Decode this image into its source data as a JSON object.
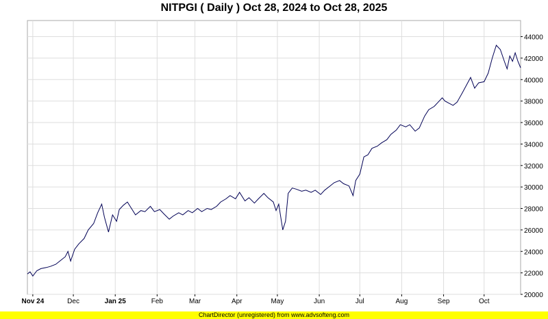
{
  "chart_data": {
    "type": "line",
    "title": "NITPGI ( Daily ) Oct 28, 2024 to Oct 28, 2025",
    "xlabel": "",
    "ylabel": "",
    "ylim": [
      20000,
      45500
    ],
    "yticks": [
      20000,
      22000,
      24000,
      26000,
      28000,
      30000,
      32000,
      34000,
      36000,
      38000,
      40000,
      42000,
      44000
    ],
    "xticks": [
      {
        "label": "Nov 24",
        "date": "2024-11-01",
        "bold": true
      },
      {
        "label": "Dec",
        "date": "2024-12-01",
        "bold": false
      },
      {
        "label": "Jan 25",
        "date": "2025-01-01",
        "bold": true
      },
      {
        "label": "Feb",
        "date": "2025-02-01",
        "bold": false
      },
      {
        "label": "Mar",
        "date": "2025-03-01",
        "bold": false
      },
      {
        "label": "Apr",
        "date": "2025-04-01",
        "bold": false
      },
      {
        "label": "May",
        "date": "2025-05-01",
        "bold": false
      },
      {
        "label": "Jun",
        "date": "2025-06-01",
        "bold": false
      },
      {
        "label": "Jul",
        "date": "2025-07-01",
        "bold": false
      },
      {
        "label": "Aug",
        "date": "2025-08-01",
        "bold": false
      },
      {
        "label": "Sep",
        "date": "2025-09-01",
        "bold": false
      },
      {
        "label": "Oct",
        "date": "2025-10-01",
        "bold": false
      }
    ],
    "grid": true,
    "line_color": "#000055",
    "series": [
      {
        "points": [
          [
            "2024-10-28",
            21900
          ],
          [
            "2024-10-30",
            22100
          ],
          [
            "2024-11-01",
            21700
          ],
          [
            "2024-11-04",
            22200
          ],
          [
            "2024-11-07",
            22400
          ],
          [
            "2024-11-11",
            22500
          ],
          [
            "2024-11-14",
            22600
          ],
          [
            "2024-11-18",
            22800
          ],
          [
            "2024-11-21",
            23100
          ],
          [
            "2024-11-25",
            23500
          ],
          [
            "2024-11-27",
            24000
          ],
          [
            "2024-11-29",
            23100
          ],
          [
            "2024-12-02",
            24200
          ],
          [
            "2024-12-05",
            24700
          ],
          [
            "2024-12-09",
            25200
          ],
          [
            "2024-12-12",
            26000
          ],
          [
            "2024-12-16",
            26600
          ],
          [
            "2024-12-19",
            27600
          ],
          [
            "2024-12-22",
            28400
          ],
          [
            "2024-12-24",
            27200
          ],
          [
            "2024-12-27",
            25800
          ],
          [
            "2024-12-30",
            27400
          ],
          [
            "2025-01-02",
            26800
          ],
          [
            "2025-01-04",
            27900
          ],
          [
            "2025-01-07",
            28300
          ],
          [
            "2025-01-10",
            28600
          ],
          [
            "2025-01-13",
            28000
          ],
          [
            "2025-01-16",
            27400
          ],
          [
            "2025-01-20",
            27800
          ],
          [
            "2025-01-23",
            27700
          ],
          [
            "2025-01-27",
            28200
          ],
          [
            "2025-01-30",
            27700
          ],
          [
            "2025-02-03",
            27900
          ],
          [
            "2025-02-06",
            27500
          ],
          [
            "2025-02-10",
            27000
          ],
          [
            "2025-02-13",
            27300
          ],
          [
            "2025-02-17",
            27600
          ],
          [
            "2025-02-20",
            27400
          ],
          [
            "2025-02-24",
            27800
          ],
          [
            "2025-02-27",
            27600
          ],
          [
            "2025-03-03",
            28000
          ],
          [
            "2025-03-06",
            27700
          ],
          [
            "2025-03-10",
            28000
          ],
          [
            "2025-03-13",
            27900
          ],
          [
            "2025-03-17",
            28200
          ],
          [
            "2025-03-20",
            28600
          ],
          [
            "2025-03-24",
            28900
          ],
          [
            "2025-03-27",
            29200
          ],
          [
            "2025-03-31",
            28900
          ],
          [
            "2025-04-03",
            29500
          ],
          [
            "2025-04-07",
            28700
          ],
          [
            "2025-04-10",
            29000
          ],
          [
            "2025-04-14",
            28500
          ],
          [
            "2025-04-17",
            28900
          ],
          [
            "2025-04-21",
            29400
          ],
          [
            "2025-04-24",
            29000
          ],
          [
            "2025-04-28",
            28600
          ],
          [
            "2025-04-30",
            27800
          ],
          [
            "2025-05-02",
            28400
          ],
          [
            "2025-05-05",
            26000
          ],
          [
            "2025-05-07",
            26800
          ],
          [
            "2025-05-09",
            29400
          ],
          [
            "2025-05-12",
            29900
          ],
          [
            "2025-05-15",
            29800
          ],
          [
            "2025-05-19",
            29600
          ],
          [
            "2025-05-22",
            29700
          ],
          [
            "2025-05-26",
            29500
          ],
          [
            "2025-05-29",
            29700
          ],
          [
            "2025-06-02",
            29300
          ],
          [
            "2025-06-05",
            29700
          ],
          [
            "2025-06-09",
            30100
          ],
          [
            "2025-06-12",
            30400
          ],
          [
            "2025-06-16",
            30600
          ],
          [
            "2025-06-19",
            30300
          ],
          [
            "2025-06-23",
            30100
          ],
          [
            "2025-06-26",
            29200
          ],
          [
            "2025-06-28",
            30600
          ],
          [
            "2025-07-01",
            31200
          ],
          [
            "2025-07-04",
            32800
          ],
          [
            "2025-07-07",
            33000
          ],
          [
            "2025-07-10",
            33600
          ],
          [
            "2025-07-14",
            33800
          ],
          [
            "2025-07-17",
            34100
          ],
          [
            "2025-07-21",
            34400
          ],
          [
            "2025-07-24",
            34900
          ],
          [
            "2025-07-28",
            35300
          ],
          [
            "2025-07-31",
            35800
          ],
          [
            "2025-08-04",
            35600
          ],
          [
            "2025-08-07",
            35800
          ],
          [
            "2025-08-11",
            35200
          ],
          [
            "2025-08-14",
            35500
          ],
          [
            "2025-08-18",
            36600
          ],
          [
            "2025-08-21",
            37200
          ],
          [
            "2025-08-25",
            37500
          ],
          [
            "2025-08-28",
            37900
          ],
          [
            "2025-08-31",
            38300
          ],
          [
            "2025-09-02",
            38000
          ],
          [
            "2025-09-05",
            37800
          ],
          [
            "2025-09-08",
            37600
          ],
          [
            "2025-09-11",
            37900
          ],
          [
            "2025-09-15",
            38800
          ],
          [
            "2025-09-18",
            39500
          ],
          [
            "2025-09-21",
            40200
          ],
          [
            "2025-09-24",
            39200
          ],
          [
            "2025-09-27",
            39700
          ],
          [
            "2025-10-01",
            39800
          ],
          [
            "2025-10-04",
            40600
          ],
          [
            "2025-10-07",
            42000
          ],
          [
            "2025-10-10",
            43200
          ],
          [
            "2025-10-13",
            42800
          ],
          [
            "2025-10-16",
            41700
          ],
          [
            "2025-10-18",
            41000
          ],
          [
            "2025-10-20",
            42200
          ],
          [
            "2025-10-22",
            41700
          ],
          [
            "2025-10-24",
            42500
          ],
          [
            "2025-10-26",
            41700
          ],
          [
            "2025-10-28",
            41100
          ]
        ]
      }
    ]
  },
  "footer": {
    "text": "ChartDirector (unregistered) from www.advsofteng.com"
  }
}
